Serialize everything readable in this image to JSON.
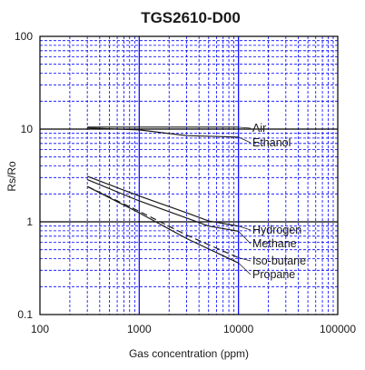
{
  "chart_data": {
    "type": "line",
    "title": "TGS2610-D00",
    "xlabel": "Gas concentration (ppm)",
    "ylabel": "Rs/Ro",
    "x_scale": "log",
    "y_scale": "log",
    "xlim": [
      100,
      100000
    ],
    "ylim": [
      0.1,
      100
    ],
    "x_ticks": [
      "100",
      "1000",
      "10000",
      "100000"
    ],
    "y_ticks": [
      "100",
      "10",
      "1",
      "0.1"
    ],
    "grid": true,
    "grid_color": "#0000ff",
    "series": [
      {
        "name": "Air",
        "style": "solid",
        "x": [
          300,
          10000
        ],
        "y": [
          10.5,
          10.5
        ]
      },
      {
        "name": "Ethanol",
        "style": "solid",
        "x": [
          300,
          1000,
          3000,
          10000
        ],
        "y": [
          10.3,
          9.8,
          8.5,
          8.2
        ]
      },
      {
        "name": "Hydrogen",
        "style": "solid",
        "x": [
          300,
          1000,
          3000,
          5000,
          10000
        ],
        "y": [
          3.1,
          1.9,
          1.25,
          1.02,
          0.9
        ]
      },
      {
        "name": "Methane",
        "style": "solid",
        "x": [
          300,
          1000,
          3000,
          5000,
          10000
        ],
        "y": [
          2.85,
          1.68,
          1.1,
          0.9,
          0.79
        ]
      },
      {
        "name": "Iso-butane",
        "style": "dashed",
        "x": [
          300,
          1000,
          3000,
          10000
        ],
        "y": [
          2.4,
          1.3,
          0.72,
          0.41
        ]
      },
      {
        "name": "Propane",
        "style": "solid",
        "x": [
          300,
          1000,
          3000,
          10000
        ],
        "y": [
          2.4,
          1.25,
          0.66,
          0.36
        ]
      }
    ]
  }
}
